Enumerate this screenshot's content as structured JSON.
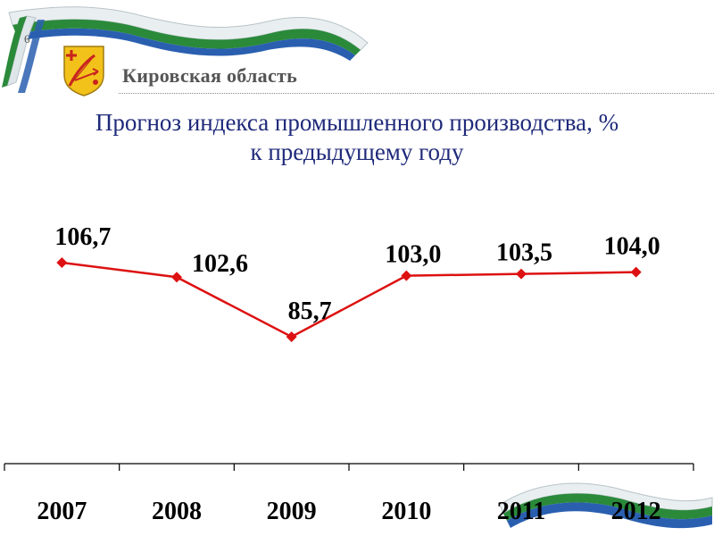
{
  "slide_number": "6",
  "header": {
    "region_name": "Кировская область",
    "emblem_icon": "kirov-coat-of-arms-icon"
  },
  "title_lines": [
    "Прогноз индекса промышленного производства, %",
    "к предыдущему году"
  ],
  "colors": {
    "title": "#1f2a7a",
    "series_line": "#dd1111",
    "ribbon_green": "#2a8a3a",
    "ribbon_blue": "#2a5fb0"
  },
  "chart_data": {
    "type": "line",
    "categories": [
      "2007",
      "2008",
      "2009",
      "2010",
      "2011",
      "2012"
    ],
    "series": [
      {
        "values": [
          106.7,
          102.6,
          85.7,
          103.0,
          103.5,
          104.0
        ],
        "labels": [
          "106,7",
          "102,6",
          "85,7",
          "103,0",
          "103,5",
          "104,0"
        ]
      }
    ],
    "title": "Прогноз индекса промышленного производства, % к предыдущему году",
    "xlabel": "",
    "ylabel": "",
    "grid": false,
    "legend": "none"
  }
}
